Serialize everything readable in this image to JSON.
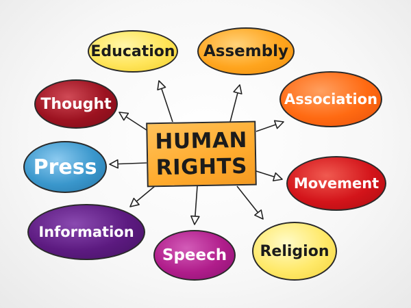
{
  "center": {
    "line1": "HUMAN",
    "line2": "RIGHTS",
    "color": "#ffab2e"
  },
  "nodes": [
    {
      "label": "Education",
      "color": "#ffe55a",
      "text_color": "#1b1b1b"
    },
    {
      "label": "Assembly",
      "color": "#ffa51e",
      "text_color": "#1b1b1b"
    },
    {
      "label": "Association",
      "color": "#ff6a12",
      "text_color": "#ffffff"
    },
    {
      "label": "Movement",
      "color": "#d3141a",
      "text_color": "#ffffff"
    },
    {
      "label": "Religion",
      "color": "#ffe96a",
      "text_color": "#1b1b1b"
    },
    {
      "label": "Speech",
      "color": "#b01d8b",
      "text_color": "#ffffff"
    },
    {
      "label": "Information",
      "color": "#5c1a80",
      "text_color": "#ffffff"
    },
    {
      "label": "Press",
      "color": "#3a97cc",
      "text_color": "#ffffff"
    },
    {
      "label": "Thought",
      "color": "#9c1220",
      "text_color": "#ffffff"
    }
  ]
}
